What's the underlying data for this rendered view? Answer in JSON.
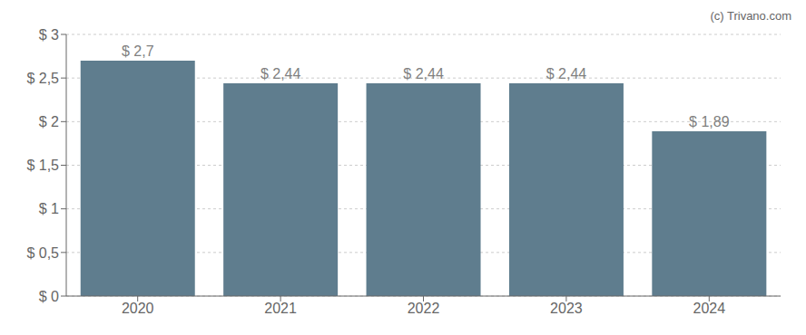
{
  "chart_data": {
    "type": "bar",
    "categories": [
      "2020",
      "2021",
      "2022",
      "2023",
      "2024"
    ],
    "values": [
      2.7,
      2.44,
      2.44,
      2.44,
      1.89
    ],
    "value_labels": [
      "$ 2,7",
      "$ 2,44",
      "$ 2,44",
      "$ 2,44",
      "$ 1,89"
    ],
    "data_labels": true,
    "color": "#5f7d8e",
    "ylim": [
      0,
      3.0
    ],
    "yticks": [
      {
        "value": 0,
        "label": "$ 0"
      },
      {
        "value": 0.5,
        "label": "$ 0,5"
      },
      {
        "value": 1,
        "label": "$ 1"
      },
      {
        "value": 1.5,
        "label": "$ 1,5"
      },
      {
        "value": 2,
        "label": "$ 2"
      },
      {
        "value": 2.5,
        "label": "$ 2,5"
      },
      {
        "value": 3,
        "label": "$ 3"
      }
    ],
    "grid": true,
    "annotations": [
      "(c) Trivano.com"
    ]
  }
}
